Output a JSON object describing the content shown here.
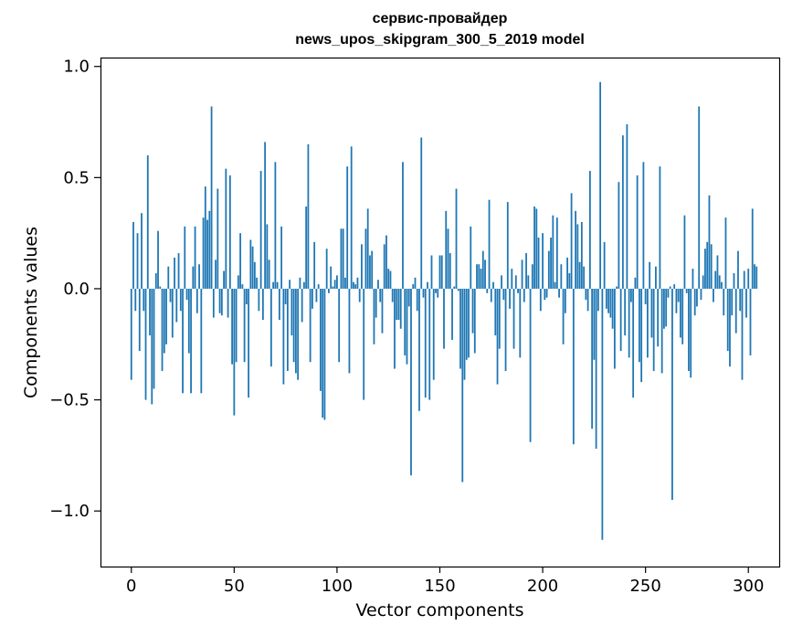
{
  "chart_data": {
    "type": "bar",
    "title": [
      "сервис-провайдер",
      "news_upos_skipgram_300_5_2019 model"
    ],
    "xlabel": "Vector components",
    "ylabel": "Components values",
    "xlim": [
      -15,
      315
    ],
    "ylim": [
      -1.25,
      1.04
    ],
    "xticks": [
      0,
      50,
      100,
      150,
      200,
      250,
      300
    ],
    "xtick_labels": [
      "0",
      "50",
      "100",
      "150",
      "200",
      "250",
      "300"
    ],
    "yticks": [
      -1.0,
      -0.5,
      0.0,
      0.5,
      1.0
    ],
    "ytick_labels": [
      "−1.0",
      "−0.5",
      "0.0",
      "0.5",
      "1.0"
    ],
    "bar_color": "#1f77b4",
    "grid": false,
    "x_start": 0,
    "values": [
      -0.41,
      0.3,
      -0.1,
      0.25,
      -0.28,
      0.34,
      -0.1,
      -0.5,
      0.6,
      -0.21,
      -0.52,
      -0.45,
      0.07,
      0.26,
      0.01,
      -0.37,
      -0.29,
      -0.25,
      0.1,
      -0.06,
      -0.22,
      0.14,
      -0.15,
      0.16,
      -0.1,
      -0.47,
      0.28,
      -0.05,
      -0.29,
      -0.47,
      0.1,
      0.28,
      -0.11,
      0.11,
      -0.47,
      0.32,
      0.46,
      0.31,
      0.35,
      0.82,
      -0.13,
      0.13,
      0.45,
      -0.11,
      -0.12,
      0.08,
      0.54,
      -0.13,
      0.51,
      -0.34,
      -0.57,
      -0.33,
      0.06,
      0.25,
      0.02,
      -0.33,
      -0.07,
      -0.49,
      0.22,
      0.19,
      0.12,
      0.05,
      -0.1,
      0.53,
      -0.14,
      0.66,
      0.29,
      0.13,
      -0.35,
      0.03,
      0.57,
      0.03,
      -0.14,
      0.28,
      -0.43,
      -0.07,
      -0.37,
      0.04,
      -0.21,
      -0.33,
      -0.38,
      -0.41,
      0.05,
      -0.15,
      0.03,
      0.37,
      0.65,
      -0.33,
      -0.09,
      0.21,
      -0.06,
      0.02,
      -0.46,
      -0.58,
      -0.59,
      0.18,
      -0.02,
      0.1,
      0.01,
      0.04,
      0.06,
      -0.33,
      0.27,
      0.27,
      0.05,
      0.55,
      -0.38,
      0.64,
      0.03,
      0.02,
      0.05,
      -0.06,
      0.2,
      -0.5,
      0.27,
      0.36,
      0.15,
      0.17,
      -0.25,
      -0.13,
      0.04,
      -0.06,
      -0.2,
      0.2,
      0.24,
      0.09,
      0.08,
      -0.06,
      -0.36,
      -0.14,
      -0.14,
      -0.18,
      0.57,
      -0.3,
      -0.34,
      -0.08,
      -0.84,
      0.02,
      0.05,
      -0.1,
      -0.55,
      0.68,
      -0.04,
      -0.49,
      0.03,
      -0.5,
      0.15,
      -0.41,
      -0.02,
      -0.04,
      0.15,
      0.15,
      -0.27,
      0.35,
      0.27,
      0.16,
      -0.23,
      0.01,
      0.45,
      -0.01,
      -0.36,
      -0.87,
      -0.41,
      -0.32,
      -0.31,
      0.28,
      -0.2,
      -0.29,
      0.11,
      0.11,
      0.09,
      0.17,
      0.13,
      -0.02,
      0.4,
      -0.06,
      0.03,
      -0.21,
      -0.43,
      -0.27,
      0.06,
      -0.05,
      -0.37,
      0.39,
      -0.09,
      0.09,
      -0.27,
      0.06,
      -0.02,
      -0.31,
      0.13,
      -0.06,
      0.16,
      0.06,
      -0.69,
      0.11,
      0.37,
      0.36,
      0.23,
      -0.1,
      0.25,
      -0.05,
      -0.04,
      0.17,
      0.23,
      0.33,
      0.03,
      0.32,
      -0.04,
      0.11,
      -0.25,
      -0.11,
      0.14,
      0.07,
      0.43,
      -0.7,
      0.35,
      0.29,
      0.12,
      0.3,
      0.1,
      -0.05,
      -0.1,
      0.53,
      -0.63,
      -0.32,
      -0.72,
      -0.1,
      0.93,
      -1.13,
      0.21,
      -0.09,
      -0.11,
      -0.13,
      -0.18,
      -0.36,
      0.01,
      0.48,
      -0.28,
      0.69,
      -0.21,
      0.74,
      -0.31,
      -0.06,
      -0.49,
      0.05,
      0.51,
      -0.33,
      -0.42,
      0.57,
      -0.07,
      -0.31,
      0.12,
      -0.22,
      -0.37,
      0.1,
      -0.26,
      0.55,
      -0.38,
      -0.18,
      -0.17,
      -0.04,
      0.01,
      -0.95,
      0.02,
      -0.11,
      -0.06,
      -0.22,
      -0.25,
      0.33,
      -0.02,
      -0.37,
      -0.4,
      0.09,
      -0.12,
      -0.08,
      0.82,
      -0.05,
      0.06,
      0.18,
      0.21,
      0.42,
      0.2,
      -0.06,
      0.08,
      0.15,
      0.06,
      0.03,
      -0.12,
      0.32,
      -0.28,
      -0.35,
      -0.12,
      0.07,
      -0.2,
      0.17,
      -0.1,
      -0.41,
      0.08,
      -0.13,
      0.09,
      -0.3,
      0.36,
      0.11,
      0.1
    ]
  }
}
